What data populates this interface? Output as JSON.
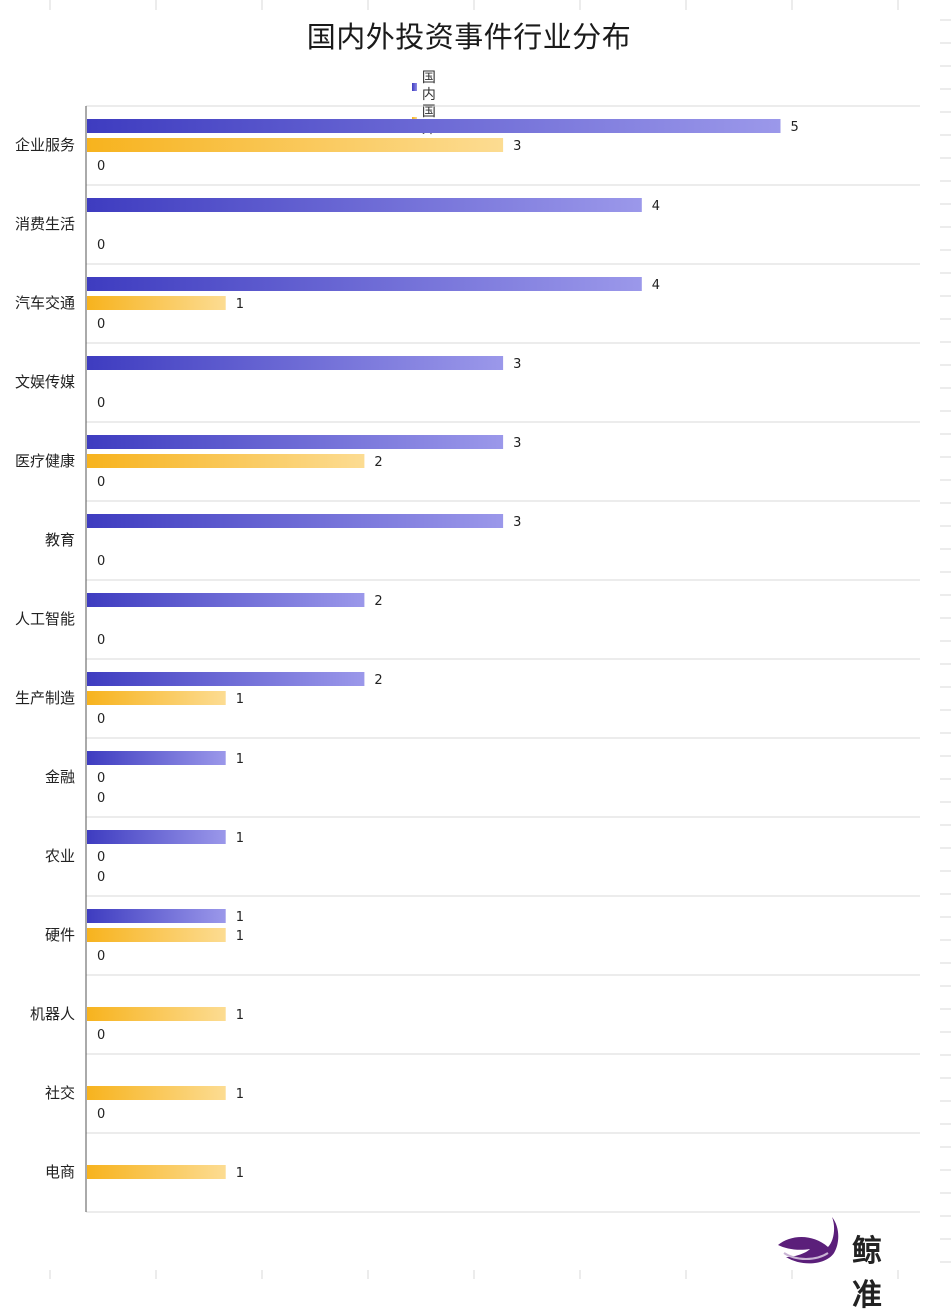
{
  "chart_data": {
    "type": "bar",
    "orientation": "horizontal",
    "title": "国内外投资事件行业分布",
    "categories": [
      "企业服务",
      "消费生活",
      "汽车交通",
      "文娱传媒",
      "医疗健康",
      "教育",
      "人工智能",
      "生产制造",
      "金融",
      "农业",
      "硬件",
      "机器人",
      "社交",
      "电商"
    ],
    "series": [
      {
        "name": "国内",
        "values": [
          5,
          4,
          4,
          3,
          3,
          3,
          2,
          2,
          1,
          1,
          1,
          null,
          null,
          null
        ],
        "color": "#4a47c7"
      },
      {
        "name": "国外",
        "values": [
          3,
          null,
          1,
          null,
          2,
          null,
          null,
          1,
          0,
          0,
          1,
          1,
          1,
          1
        ],
        "color": "#f8b726"
      },
      {
        "name": "",
        "values": [
          0,
          0,
          0,
          0,
          0,
          0,
          0,
          0,
          0,
          0,
          0,
          0,
          0,
          null
        ],
        "color": "#999999"
      }
    ],
    "xlim": [
      0,
      6
    ],
    "grid": true,
    "legend_position": "top-center"
  },
  "watermark": {
    "text": "鲸准",
    "logo_color": "#5b1f7a"
  }
}
